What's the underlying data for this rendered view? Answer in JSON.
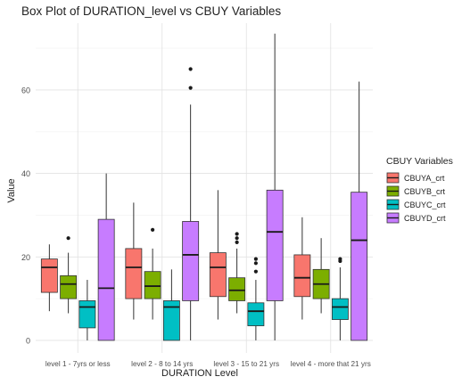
{
  "chart_data": {
    "type": "boxplot",
    "title": "Box Plot of DURATION_level vs CBUY Variables",
    "xlabel": "DURATION Level",
    "ylabel": "Value",
    "ylim": [
      -3,
      76
    ],
    "yticks": [
      0,
      20,
      40,
      60
    ],
    "grid": true,
    "legend_title": "CBUY Variables",
    "legend_position": "right",
    "categories": [
      "level 1 - 7yrs or less",
      "level 2 - 8 to 14 yrs",
      "level 3 - 15 to 21 yrs",
      "level 4 - more that 21 yrs"
    ],
    "series": [
      {
        "name": "CBUYA_crt",
        "color": "#F8766D",
        "boxes": [
          {
            "whisker_low": 7,
            "q1": 11.5,
            "median": 17.5,
            "q3": 19.5,
            "whisker_high": 23,
            "outliers": []
          },
          {
            "whisker_low": 5,
            "q1": 10,
            "median": 17.5,
            "q3": 22,
            "whisker_high": 33,
            "outliers": []
          },
          {
            "whisker_low": 5,
            "q1": 10.5,
            "median": 17.5,
            "q3": 21,
            "whisker_high": 36,
            "outliers": []
          },
          {
            "whisker_low": 5,
            "q1": 10.5,
            "median": 15,
            "q3": 20.5,
            "whisker_high": 29.5,
            "outliers": []
          }
        ]
      },
      {
        "name": "CBUYB_crt",
        "color": "#7CAE00",
        "boxes": [
          {
            "whisker_low": 6.5,
            "q1": 10,
            "median": 13.5,
            "q3": 15.5,
            "whisker_high": 21,
            "outliers": [
              24.5
            ]
          },
          {
            "whisker_low": 5,
            "q1": 10,
            "median": 13,
            "q3": 16.5,
            "whisker_high": 22,
            "outliers": [
              26.5
            ]
          },
          {
            "whisker_low": 6.5,
            "q1": 9.5,
            "median": 12,
            "q3": 15,
            "whisker_high": 22,
            "outliers": [
              23.5,
              24.5,
              25.5
            ]
          },
          {
            "whisker_low": 6.5,
            "q1": 10,
            "median": 13.5,
            "q3": 17,
            "whisker_high": 24.5,
            "outliers": []
          }
        ]
      },
      {
        "name": "CBUYC_crt",
        "color": "#00BFC4",
        "boxes": [
          {
            "whisker_low": 0,
            "q1": 3,
            "median": 8,
            "q3": 9.5,
            "whisker_high": 14.5,
            "outliers": []
          },
          {
            "whisker_low": 0,
            "q1": 0,
            "median": 8,
            "q3": 9.5,
            "whisker_high": 17,
            "outliers": []
          },
          {
            "whisker_low": 0,
            "q1": 3.5,
            "median": 7,
            "q3": 9,
            "whisker_high": 14.5,
            "outliers": [
              16.5,
              18.5,
              19.5
            ]
          },
          {
            "whisker_low": 0,
            "q1": 5,
            "median": 8,
            "q3": 10,
            "whisker_high": 17.5,
            "outliers": [
              19,
              19.5
            ]
          }
        ]
      },
      {
        "name": "CBUYD_crt",
        "color": "#C77CFF",
        "boxes": [
          {
            "whisker_low": 0,
            "q1": 0,
            "median": 12.5,
            "q3": 29,
            "whisker_high": 40,
            "outliers": []
          },
          {
            "whisker_low": 0,
            "q1": 9.5,
            "median": 20.5,
            "q3": 28.5,
            "whisker_high": 56.5,
            "outliers": [
              60.5,
              65
            ]
          },
          {
            "whisker_low": 0,
            "q1": 9.5,
            "median": 26,
            "q3": 36,
            "whisker_high": 73.5,
            "outliers": []
          },
          {
            "whisker_low": 0,
            "q1": 0,
            "median": 24,
            "q3": 35.5,
            "whisker_high": 62,
            "outliers": []
          }
        ]
      }
    ]
  }
}
